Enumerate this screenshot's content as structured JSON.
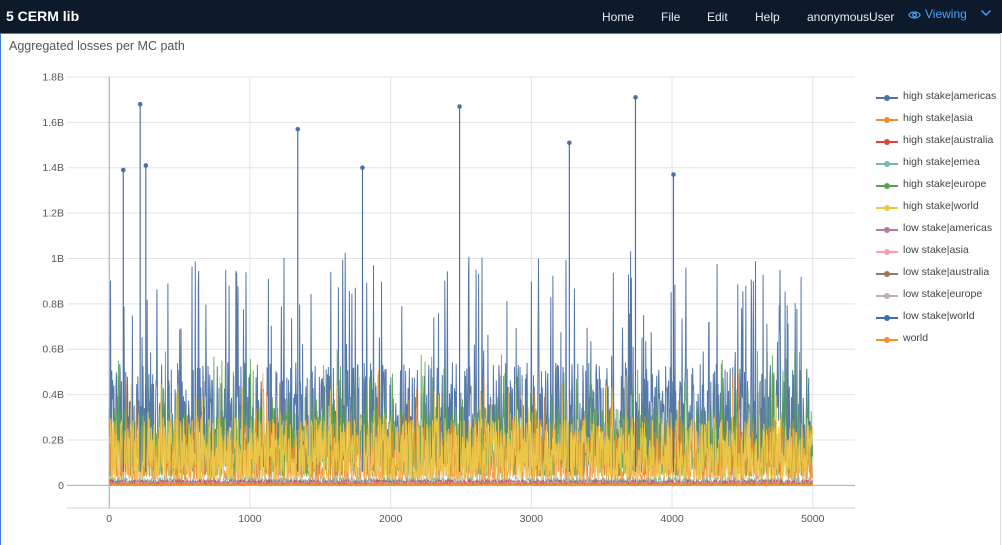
{
  "app": {
    "title": "5 CERM lib"
  },
  "nav": {
    "items": [
      "Home",
      "File",
      "Edit",
      "Help",
      "anonymousUser"
    ],
    "viewing_label": "Viewing"
  },
  "panel": {
    "title": "Aggregated losses per MC path"
  },
  "chart_data": {
    "type": "line",
    "title": "Aggregated losses per MC path",
    "xlabel": "",
    "ylabel": "",
    "xlim": [
      -300,
      5300
    ],
    "ylim": [
      -100000000,
      1800000000
    ],
    "x_ticks": [
      0,
      1000,
      2000,
      3000,
      4000,
      5000
    ],
    "x_tick_labels": [
      "0",
      "1000",
      "2000",
      "3000",
      "4000",
      "5000"
    ],
    "y_ticks": [
      0,
      200000000,
      400000000,
      600000000,
      800000000,
      1000000000,
      1200000000,
      1400000000,
      1600000000,
      1800000000
    ],
    "y_tick_labels": [
      "0",
      "0.2B",
      "0.4B",
      "0.6B",
      "0.8B",
      "1B",
      "1.2B",
      "1.4B",
      "1.6B",
      "1.8B"
    ],
    "grid": true,
    "legend_position": "right",
    "series": [
      {
        "name": "high stake|americas",
        "color": "#4c72a4",
        "peaks": [
          {
            "x": 100,
            "y": 1390000000
          },
          {
            "x": 220,
            "y": 1680000000
          },
          {
            "x": 260,
            "y": 1410000000
          },
          {
            "x": 1340,
            "y": 1570000000
          },
          {
            "x": 1800,
            "y": 1400000000
          },
          {
            "x": 2490,
            "y": 1670000000
          },
          {
            "x": 3270,
            "y": 1510000000
          },
          {
            "x": 3740,
            "y": 1710000000
          },
          {
            "x": 4010,
            "y": 1370000000
          }
        ]
      },
      {
        "name": "high stake|asia",
        "color": "#f08c2e",
        "peaks": []
      },
      {
        "name": "high stake|australia",
        "color": "#d9453d",
        "peaks": []
      },
      {
        "name": "high stake|emea",
        "color": "#76b7b2",
        "peaks": []
      },
      {
        "name": "high stake|europe",
        "color": "#59a14f",
        "peaks": []
      },
      {
        "name": "high stake|world",
        "color": "#edc948",
        "peaks": []
      },
      {
        "name": "low stake|americas",
        "color": "#b07aa1",
        "peaks": []
      },
      {
        "name": "low stake|asia",
        "color": "#ff9da7",
        "peaks": []
      },
      {
        "name": "low stake|australia",
        "color": "#9c755f",
        "peaks": []
      },
      {
        "name": "low stake|europe",
        "color": "#bab0ac",
        "peaks": []
      },
      {
        "name": "low stake|world",
        "color": "#3f6fa8",
        "peaks": []
      },
      {
        "name": "world",
        "color": "#f28e2b",
        "peaks": []
      }
    ]
  }
}
